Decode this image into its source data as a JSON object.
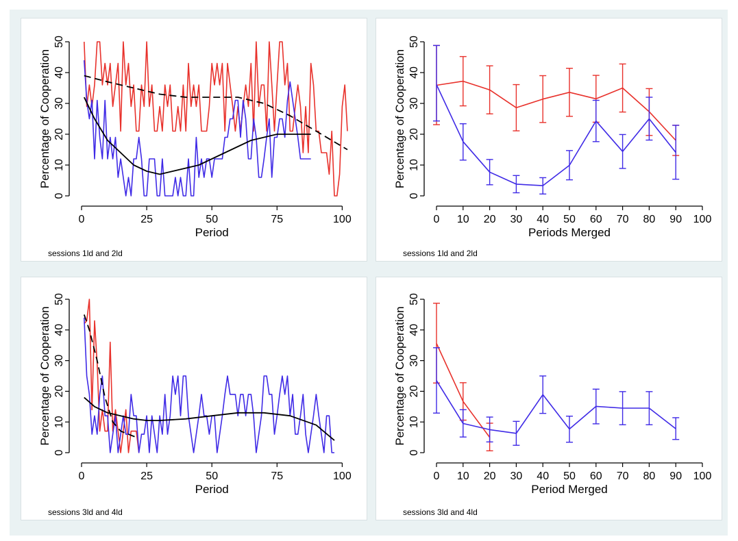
{
  "header_mark": ".",
  "colors": {
    "red": "#e8312b",
    "blue": "#3f2ae6",
    "black": "#000000",
    "frame": "#eaf2f3"
  },
  "panels": [
    {
      "caption": "sessions 1ld and 2ld"
    },
    {
      "caption": "sessions 1ld and 2ld"
    },
    {
      "caption": "sessions 3ld and 4ld"
    },
    {
      "caption": "sessions 3ld and 4ld"
    }
  ],
  "chart_data": [
    {
      "type": "line",
      "xlabel": "Period",
      "ylabel": "Percentage of Cooperation",
      "xlim": [
        0,
        102
      ],
      "ylim": [
        0,
        50
      ],
      "xticks": [
        0,
        25,
        50,
        75,
        100
      ],
      "yticks": [
        0,
        10,
        20,
        30,
        40,
        50
      ],
      "caption": "sessions 1ld and 2ld",
      "series": [
        {
          "color": "red",
          "style": "solid",
          "x": [
            1,
            2,
            3,
            4,
            5,
            6,
            7,
            8,
            9,
            10,
            11,
            12,
            13,
            14,
            15,
            16,
            17,
            18,
            19,
            20,
            21,
            22,
            23,
            24,
            25,
            26,
            27,
            28,
            29,
            30,
            31,
            32,
            33,
            34,
            35,
            36,
            37,
            38,
            39,
            40,
            41,
            42,
            43,
            44,
            45,
            46,
            47,
            48,
            49,
            50,
            51,
            52,
            53,
            54,
            55,
            56,
            57,
            58,
            59,
            60,
            61,
            62,
            63,
            64,
            65,
            66,
            67,
            68,
            69,
            70,
            71,
            72,
            73,
            74,
            75,
            76,
            77,
            78,
            79,
            80,
            81,
            82,
            83,
            84,
            85,
            86,
            87,
            88,
            89,
            90,
            91,
            92,
            93,
            94,
            95,
            96,
            97,
            98,
            99,
            100,
            101,
            102
          ],
          "y": [
            50,
            29,
            36,
            29,
            36,
            50,
            50,
            36,
            43,
            36,
            43,
            29,
            36,
            43,
            21,
            50,
            36,
            43,
            29,
            36,
            21,
            21,
            36,
            29,
            50,
            29,
            36,
            21,
            21,
            29,
            21,
            36,
            29,
            36,
            21,
            21,
            29,
            21,
            36,
            21,
            43,
            29,
            36,
            29,
            36,
            21,
            21,
            21,
            29,
            43,
            36,
            43,
            36,
            43,
            21,
            43,
            36,
            29,
            21,
            29,
            21,
            29,
            36,
            29,
            43,
            21,
            50,
            29,
            36,
            36,
            21,
            50,
            36,
            21,
            36,
            50,
            50,
            36,
            43,
            21,
            21,
            29,
            36,
            29,
            14,
            29,
            14,
            43,
            36,
            21,
            21,
            14,
            14,
            14,
            7,
            21,
            0,
            0,
            7,
            29,
            36,
            21
          ]
        },
        {
          "color": "blue",
          "style": "solid",
          "x": [
            1,
            2,
            3,
            4,
            5,
            6,
            7,
            8,
            9,
            10,
            11,
            12,
            13,
            14,
            15,
            16,
            17,
            18,
            19,
            20,
            21,
            22,
            23,
            24,
            25,
            26,
            27,
            28,
            29,
            30,
            31,
            32,
            33,
            34,
            35,
            36,
            37,
            38,
            39,
            40,
            41,
            42,
            43,
            44,
            45,
            46,
            47,
            48,
            49,
            50,
            51,
            52,
            53,
            54,
            55,
            56,
            57,
            58,
            59,
            60,
            61,
            62,
            63,
            64,
            65,
            66,
            67,
            68,
            69,
            70,
            71,
            72,
            73,
            74,
            75,
            76,
            77,
            78,
            79,
            80,
            81,
            82,
            83,
            84,
            85,
            86,
            87,
            88
          ],
          "y": [
            44,
            31,
            25,
            31,
            12,
            31,
            19,
            12,
            31,
            12,
            19,
            12,
            19,
            6,
            12,
            6,
            0,
            6,
            0,
            12,
            12,
            19,
            12,
            0,
            0,
            12,
            12,
            12,
            0,
            0,
            12,
            0,
            0,
            0,
            0,
            6,
            0,
            6,
            0,
            0,
            12,
            0,
            0,
            19,
            6,
            12,
            6,
            12,
            12,
            6,
            12,
            12,
            12,
            12,
            19,
            19,
            25,
            25,
            31,
            31,
            19,
            31,
            25,
            12,
            12,
            25,
            19,
            6,
            6,
            12,
            19,
            25,
            6,
            19,
            19,
            25,
            25,
            19,
            31,
            37,
            31,
            25,
            19,
            12,
            12,
            12,
            12,
            12
          ]
        },
        {
          "color": "black",
          "style": "dashed",
          "x": [
            1,
            10,
            20,
            30,
            40,
            50,
            60,
            70,
            80,
            90,
            102
          ],
          "y": [
            39,
            37,
            35,
            33,
            32,
            32,
            32,
            30,
            26,
            21,
            15
          ]
        },
        {
          "color": "black",
          "style": "solid",
          "x": [
            1,
            5,
            10,
            15,
            20,
            25,
            30,
            35,
            40,
            45,
            50,
            55,
            60,
            65,
            70,
            75,
            80,
            85,
            88
          ],
          "y": [
            32,
            25,
            18,
            14,
            10,
            8,
            7,
            8,
            9,
            10,
            12,
            14,
            16,
            18,
            19,
            20,
            20,
            20,
            20
          ]
        }
      ]
    },
    {
      "type": "line",
      "xlabel": "Periods Merged",
      "ylabel": "Percentage of Cooperation",
      "xlim": [
        0,
        100
      ],
      "ylim": [
        0,
        50
      ],
      "xticks": [
        0,
        10,
        20,
        30,
        40,
        50,
        60,
        70,
        80,
        90,
        100
      ],
      "yticks": [
        0,
        10,
        20,
        30,
        40,
        50
      ],
      "caption": "sessions 1ld and 2ld",
      "series": [
        {
          "color": "red",
          "x": [
            0,
            10,
            20,
            30,
            40,
            50,
            60,
            70,
            80,
            90
          ],
          "y": [
            35.9,
            37.2,
            34.4,
            28.6,
            31.4,
            33.6,
            31.5,
            35.0,
            27.3,
            18.0
          ],
          "err_low": [
            23.1,
            29.2,
            26.6,
            21.1,
            23.8,
            25.8,
            23.9,
            27.2,
            19.6,
            13.1
          ],
          "err_high": [
            48.8,
            45.2,
            42.2,
            36.1,
            39.0,
            41.4,
            39.1,
            42.8,
            34.8,
            22.9
          ]
        },
        {
          "color": "blue",
          "x": [
            0,
            10,
            20,
            30,
            40,
            50,
            60,
            70,
            80,
            90
          ],
          "y": [
            36.1,
            17.6,
            7.7,
            3.8,
            3.3,
            9.9,
            24.3,
            14.4,
            25.0,
            14.1
          ],
          "err_low": [
            24.3,
            11.6,
            3.6,
            1.0,
            0.6,
            5.2,
            17.6,
            8.9,
            18.1,
            5.4
          ],
          "err_high": [
            48.8,
            23.4,
            11.8,
            6.6,
            5.9,
            14.7,
            31.0,
            19.9,
            32.0,
            22.9
          ]
        }
      ]
    },
    {
      "type": "line",
      "xlabel": "Period",
      "ylabel": "Percentage of Cooperation",
      "xlim": [
        0,
        102
      ],
      "ylim": [
        0,
        50
      ],
      "xticks": [
        0,
        25,
        50,
        75,
        100
      ],
      "yticks": [
        0,
        10,
        20,
        30,
        40,
        50
      ],
      "caption": "sessions 3ld and 4ld",
      "series": [
        {
          "color": "red",
          "style": "solid",
          "x": [
            1,
            2,
            3,
            4,
            5,
            6,
            7,
            8,
            9,
            10,
            11,
            12,
            13,
            14,
            15,
            16,
            17,
            18,
            19,
            20,
            21,
            22
          ],
          "y": [
            42,
            43,
            50,
            14,
            43,
            29,
            7,
            14,
            7,
            7,
            36,
            7,
            14,
            7,
            0,
            7,
            14,
            0,
            7,
            7,
            7,
            0
          ]
        },
        {
          "color": "blue",
          "style": "solid",
          "x": [
            1,
            2,
            3,
            4,
            5,
            6,
            7,
            8,
            9,
            10,
            11,
            12,
            13,
            14,
            15,
            16,
            17,
            18,
            19,
            20,
            21,
            22,
            23,
            24,
            25,
            26,
            27,
            28,
            29,
            30,
            31,
            32,
            33,
            34,
            35,
            36,
            37,
            38,
            39,
            40,
            41,
            42,
            43,
            44,
            45,
            46,
            47,
            48,
            49,
            50,
            51,
            52,
            53,
            54,
            55,
            56,
            57,
            58,
            59,
            60,
            61,
            62,
            63,
            64,
            65,
            66,
            67,
            68,
            69,
            70,
            71,
            72,
            73,
            74,
            75,
            76,
            77,
            78,
            79,
            80,
            81,
            82,
            83,
            84,
            85,
            86,
            87,
            88,
            89,
            90,
            91,
            92,
            93,
            94,
            95,
            96,
            97
          ],
          "y": [
            44,
            25,
            19,
            6,
            12,
            6,
            19,
            25,
            12,
            12,
            0,
            6,
            12,
            0,
            6,
            12,
            6,
            6,
            19,
            12,
            12,
            0,
            6,
            6,
            12,
            0,
            12,
            6,
            0,
            12,
            6,
            19,
            6,
            12,
            25,
            19,
            25,
            12,
            25,
            25,
            12,
            6,
            0,
            6,
            12,
            19,
            12,
            12,
            6,
            12,
            12,
            0,
            6,
            12,
            19,
            25,
            19,
            19,
            19,
            12,
            19,
            19,
            12,
            19,
            19,
            12,
            0,
            6,
            12,
            25,
            25,
            19,
            19,
            6,
            12,
            19,
            25,
            19,
            25,
            12,
            19,
            6,
            6,
            12,
            19,
            6,
            0,
            6,
            12,
            19,
            12,
            6,
            0,
            12,
            12,
            0,
            0
          ]
        },
        {
          "color": "black",
          "style": "dashed",
          "x": [
            1,
            3,
            6,
            9,
            12,
            15,
            18,
            21
          ],
          "y": [
            45,
            40,
            30,
            18,
            10,
            7,
            6,
            5
          ]
        },
        {
          "color": "black",
          "style": "solid",
          "x": [
            1,
            5,
            10,
            15,
            20,
            25,
            30,
            40,
            50,
            60,
            70,
            80,
            90,
            97
          ],
          "y": [
            18,
            15,
            13,
            12,
            11,
            10.5,
            10.5,
            11,
            12,
            13,
            13,
            12,
            9,
            4
          ]
        }
      ]
    },
    {
      "type": "line",
      "xlabel": "Period Merged",
      "ylabel": "Percentage of Cooperation",
      "xlim": [
        0,
        100
      ],
      "ylim": [
        0,
        50
      ],
      "xticks": [
        0,
        10,
        20,
        30,
        40,
        50,
        60,
        70,
        80,
        90,
        100
      ],
      "yticks": [
        0,
        10,
        20,
        30,
        40,
        50
      ],
      "caption": "sessions 3ld and 4ld",
      "series": [
        {
          "color": "red",
          "x": [
            0,
            10,
            20
          ],
          "y": [
            35.6,
            16.7,
            5.0
          ],
          "err_low": [
            22.7,
            10.6,
            0.6
          ],
          "err_high": [
            48.7,
            22.8,
            9.6
          ]
        },
        {
          "color": "blue",
          "x": [
            0,
            10,
            20,
            30,
            40,
            50,
            60,
            70,
            80,
            90
          ],
          "y": [
            23.5,
            9.5,
            7.5,
            6.3,
            18.9,
            7.7,
            15.1,
            14.5,
            14.5,
            7.8
          ],
          "err_low": [
            12.9,
            5.1,
            3.5,
            2.4,
            12.8,
            3.4,
            9.4,
            9.1,
            9.1,
            4.3
          ],
          "err_high": [
            34.2,
            14.0,
            11.6,
            10.2,
            25.0,
            11.9,
            20.7,
            19.9,
            19.9,
            11.4
          ]
        }
      ]
    }
  ]
}
